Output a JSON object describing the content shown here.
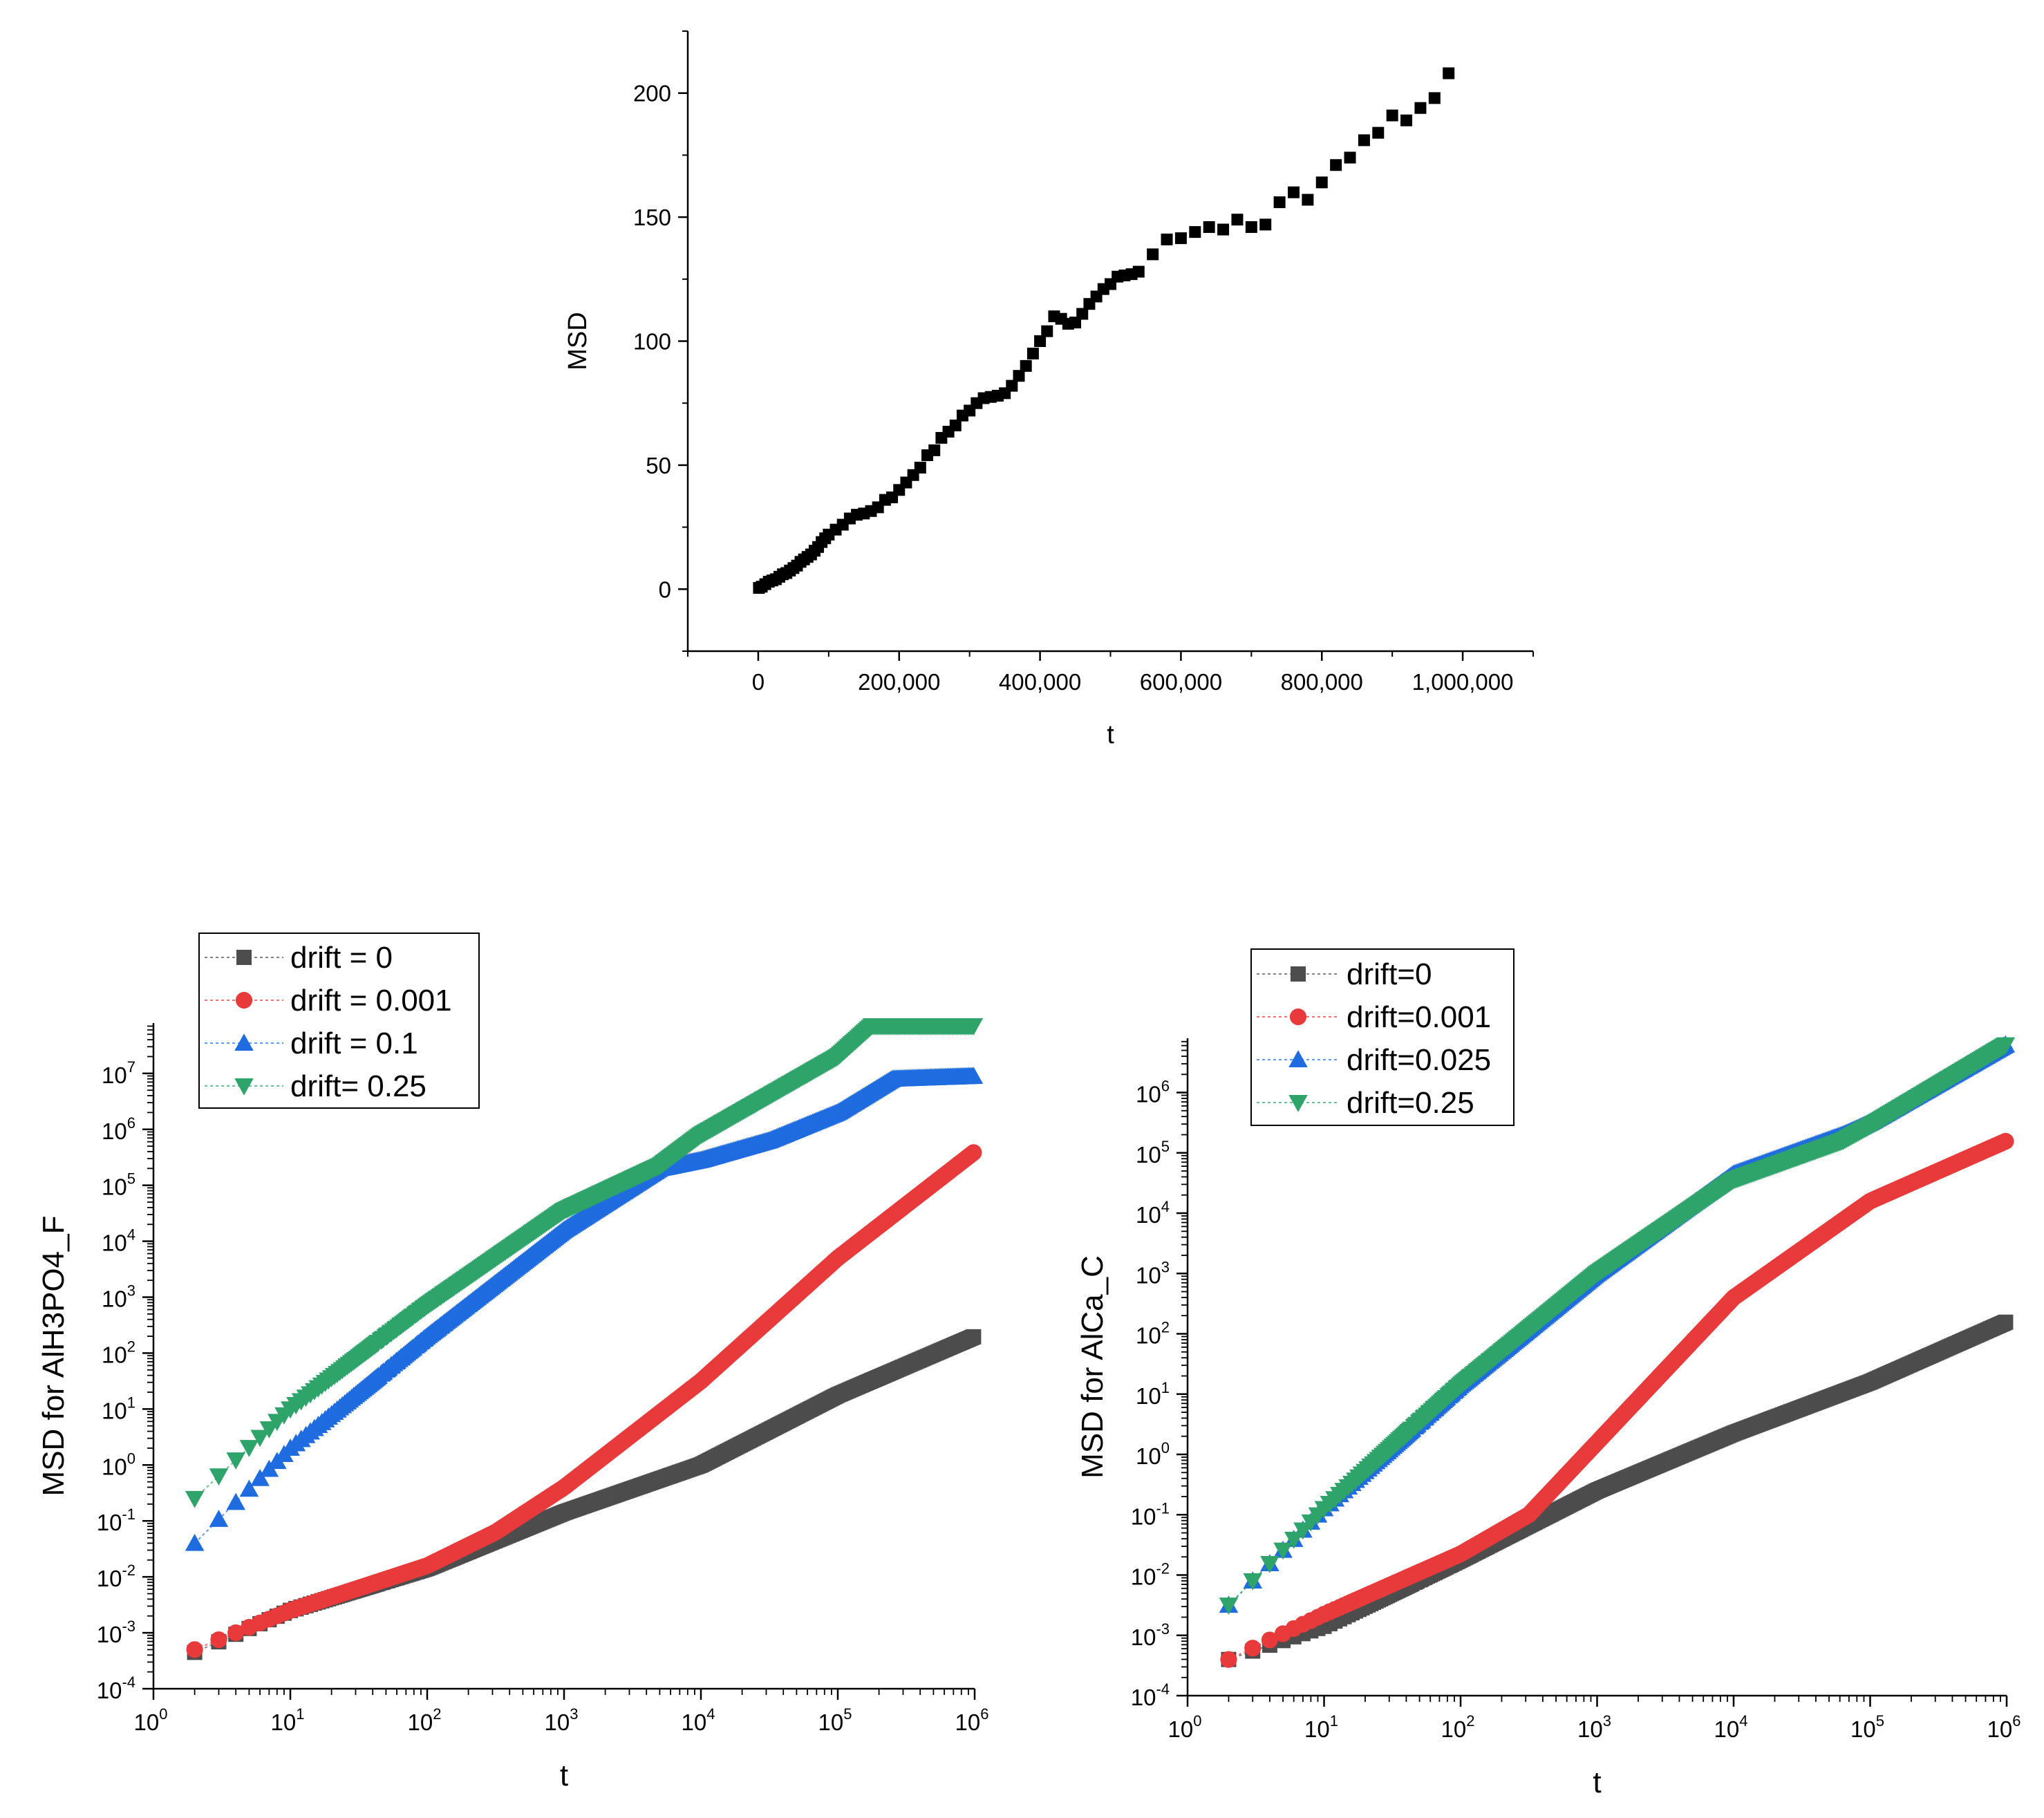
{
  "chart_data": [
    {
      "type": "scatter",
      "title": "",
      "xlabel": "t",
      "ylabel": "MSD",
      "xlim": [
        -100000,
        1100000
      ],
      "ylim": [
        -25,
        225
      ],
      "xticks": [
        0,
        200000,
        400000,
        600000,
        800000,
        1000000
      ],
      "xtick_labels": [
        "0",
        "200,000",
        "400,000",
        "600,000",
        "800,000",
        "1,000,000"
      ],
      "yticks": [
        0,
        50,
        100,
        150,
        200
      ],
      "ytick_labels": [
        "0",
        "50",
        "100",
        "150",
        "200"
      ],
      "grid": false,
      "series": [
        {
          "name": "MSD",
          "color": "#000000",
          "marker": "square",
          "points": [
            [
              1000,
              0.5
            ],
            [
              5000,
              1
            ],
            [
              10000,
              2
            ],
            [
              15000,
              3
            ],
            [
              20000,
              3.5
            ],
            [
              25000,
              4
            ],
            [
              30000,
              5
            ],
            [
              35000,
              6
            ],
            [
              40000,
              6.5
            ],
            [
              45000,
              7.5
            ],
            [
              50000,
              8.5
            ],
            [
              55000,
              9.5
            ],
            [
              60000,
              11
            ],
            [
              65000,
              12
            ],
            [
              70000,
              13
            ],
            [
              75000,
              14
            ],
            [
              80000,
              15.5
            ],
            [
              85000,
              17
            ],
            [
              90000,
              19
            ],
            [
              95000,
              20.5
            ],
            [
              100000,
              22
            ],
            [
              110000,
              24
            ],
            [
              120000,
              26
            ],
            [
              130000,
              28.5
            ],
            [
              140000,
              30
            ],
            [
              150000,
              30.5
            ],
            [
              160000,
              31.5
            ],
            [
              170000,
              33
            ],
            [
              180000,
              36
            ],
            [
              190000,
              37
            ],
            [
              200000,
              40
            ],
            [
              210000,
              43
            ],
            [
              220000,
              46
            ],
            [
              230000,
              49
            ],
            [
              240000,
              54
            ],
            [
              250000,
              56
            ],
            [
              260000,
              61
            ],
            [
              270000,
              63.5
            ],
            [
              280000,
              66
            ],
            [
              290000,
              70
            ],
            [
              300000,
              72
            ],
            [
              310000,
              75
            ],
            [
              320000,
              77
            ],
            [
              330000,
              77.5
            ],
            [
              340000,
              78
            ],
            [
              350000,
              79
            ],
            [
              360000,
              82
            ],
            [
              370000,
              86
            ],
            [
              380000,
              90
            ],
            [
              390000,
              95
            ],
            [
              400000,
              100
            ],
            [
              410000,
              104
            ],
            [
              420000,
              110
            ],
            [
              430000,
              109
            ],
            [
              440000,
              107
            ],
            [
              450000,
              107.5
            ],
            [
              460000,
              111
            ],
            [
              470000,
              115
            ],
            [
              480000,
              118
            ],
            [
              490000,
              121
            ],
            [
              500000,
              123
            ],
            [
              510000,
              126
            ],
            [
              520000,
              126.5
            ],
            [
              530000,
              127
            ],
            [
              540000,
              128
            ],
            [
              560000,
              135
            ],
            [
              580000,
              141
            ],
            [
              600000,
              141.5
            ],
            [
              620000,
              144
            ],
            [
              640000,
              146
            ],
            [
              660000,
              145
            ],
            [
              680000,
              149
            ],
            [
              700000,
              146
            ],
            [
              720000,
              147
            ],
            [
              740000,
              156
            ],
            [
              760000,
              160
            ],
            [
              780000,
              157
            ],
            [
              800000,
              164
            ],
            [
              820000,
              171
            ],
            [
              840000,
              174
            ],
            [
              860000,
              181
            ],
            [
              880000,
              184
            ],
            [
              900000,
              191
            ],
            [
              920000,
              189
            ],
            [
              940000,
              194
            ],
            [
              960000,
              198
            ],
            [
              980000,
              208
            ]
          ]
        }
      ]
    },
    {
      "type": "scatter",
      "title": "",
      "xlabel": "t",
      "ylabel": "MSD for  AlH3PO4_F",
      "xscale": "log",
      "yscale": "log",
      "xlim_log10": [
        0,
        6
      ],
      "ylim_log10": [
        -4,
        7.9
      ],
      "tick_base": "10",
      "xtick_exponents": [
        "0",
        "1",
        "2",
        "3",
        "4",
        "5",
        "6"
      ],
      "ytick_exponents": [
        "-4",
        "-3",
        "-2",
        "-1",
        "0",
        "1",
        "2",
        "3",
        "4",
        "5",
        "6",
        "7"
      ],
      "legend_position": "top-left",
      "grid": false,
      "series": [
        {
          "name": "drift = 0",
          "color": "#4d4d4d",
          "marker": "square",
          "anchors_log10": [
            [
              0.301,
              -3.35
            ],
            [
              1,
              -2.6
            ],
            [
              2,
              -1.85
            ],
            [
              3,
              -0.85
            ],
            [
              4,
              0
            ],
            [
              5,
              1.25
            ],
            [
              6,
              2.3
            ]
          ]
        },
        {
          "name": "drift = 0.001",
          "color": "#e83a3a",
          "marker": "circle",
          "anchors_log10": [
            [
              0.301,
              -3.3
            ],
            [
              1,
              -2.6
            ],
            [
              2,
              -1.8
            ],
            [
              2.5,
              -1.2
            ],
            [
              3,
              -0.4
            ],
            [
              4,
              1.5
            ],
            [
              5,
              3.7
            ],
            [
              6,
              5.6
            ]
          ]
        },
        {
          "name": "drift = 0.1",
          "color": "#1f6be0",
          "marker": "triangle-up",
          "anchors_log10": [
            [
              0.301,
              -1.4
            ],
            [
              1,
              0.3
            ],
            [
              2,
              2.3
            ],
            [
              3,
              4.2
            ],
            [
              3.7,
              5.3
            ],
            [
              4,
              5.45
            ],
            [
              4.5,
              5.8
            ],
            [
              5,
              6.3
            ],
            [
              5.4,
              6.9
            ],
            [
              6,
              6.95
            ]
          ]
        },
        {
          "name": "drift= 0.25",
          "color": "#2ea36a",
          "marker": "triangle-down",
          "anchors_log10": [
            [
              0.301,
              -0.6
            ],
            [
              1,
              1.0
            ],
            [
              2,
              2.85
            ],
            [
              3,
              4.55
            ],
            [
              3.7,
              5.35
            ],
            [
              4,
              5.9
            ],
            [
              5,
              7.3
            ],
            [
              5.25,
              7.85
            ],
            [
              6,
              7.85
            ]
          ]
        }
      ]
    },
    {
      "type": "scatter",
      "title": "",
      "xlabel": "t",
      "ylabel": "MSD for AlCa_C",
      "xscale": "log",
      "yscale": "log",
      "xlim_log10": [
        0,
        6
      ],
      "ylim_log10": [
        -4,
        6.9
      ],
      "tick_base": "10",
      "xtick_exponents": [
        "0",
        "1",
        "2",
        "3",
        "4",
        "5",
        "6"
      ],
      "ytick_exponents": [
        "-4",
        "-3",
        "-2",
        "-1",
        "0",
        "1",
        "2",
        "3",
        "4",
        "5",
        "6"
      ],
      "legend_position": "top-left",
      "grid": false,
      "series": [
        {
          "name": "drift=0",
          "color": "#4d4d4d",
          "marker": "square",
          "anchors_log10": [
            [
              0.301,
              -3.4
            ],
            [
              1,
              -2.85
            ],
            [
              2,
              -1.75
            ],
            [
              3,
              -0.6
            ],
            [
              4,
              0.35
            ],
            [
              5,
              1.2
            ],
            [
              6,
              2.2
            ]
          ]
        },
        {
          "name": " drift=0.001",
          "color": "#e83a3a",
          "marker": "circle",
          "anchors_log10": [
            [
              0.301,
              -3.4
            ],
            [
              1,
              -2.65
            ],
            [
              2,
              -1.65
            ],
            [
              2.5,
              -1.0
            ],
            [
              3,
              0.2
            ],
            [
              4,
              2.6
            ],
            [
              5,
              4.2
            ],
            [
              6,
              5.2
            ]
          ]
        },
        {
          "name": "drift=0.025",
          "color": "#1f6be0",
          "marker": "triangle-up",
          "anchors_log10": [
            [
              0.301,
              -2.5
            ],
            [
              1,
              -0.9
            ],
            [
              2,
              1.15
            ],
            [
              3,
              3.0
            ],
            [
              4,
              4.65
            ],
            [
              4.8,
              5.3
            ],
            [
              5,
              5.5
            ],
            [
              6,
              6.8
            ]
          ]
        },
        {
          "name": "drift=0.25",
          "color": "#2ea36a",
          "marker": "triangle-down",
          "anchors_log10": [
            [
              0.301,
              -2.5
            ],
            [
              1,
              -0.9
            ],
            [
              2,
              1.15
            ],
            [
              3,
              3.0
            ],
            [
              4,
              4.55
            ],
            [
              4.8,
              5.2
            ],
            [
              5,
              5.45
            ],
            [
              6,
              6.8
            ]
          ]
        }
      ]
    }
  ]
}
